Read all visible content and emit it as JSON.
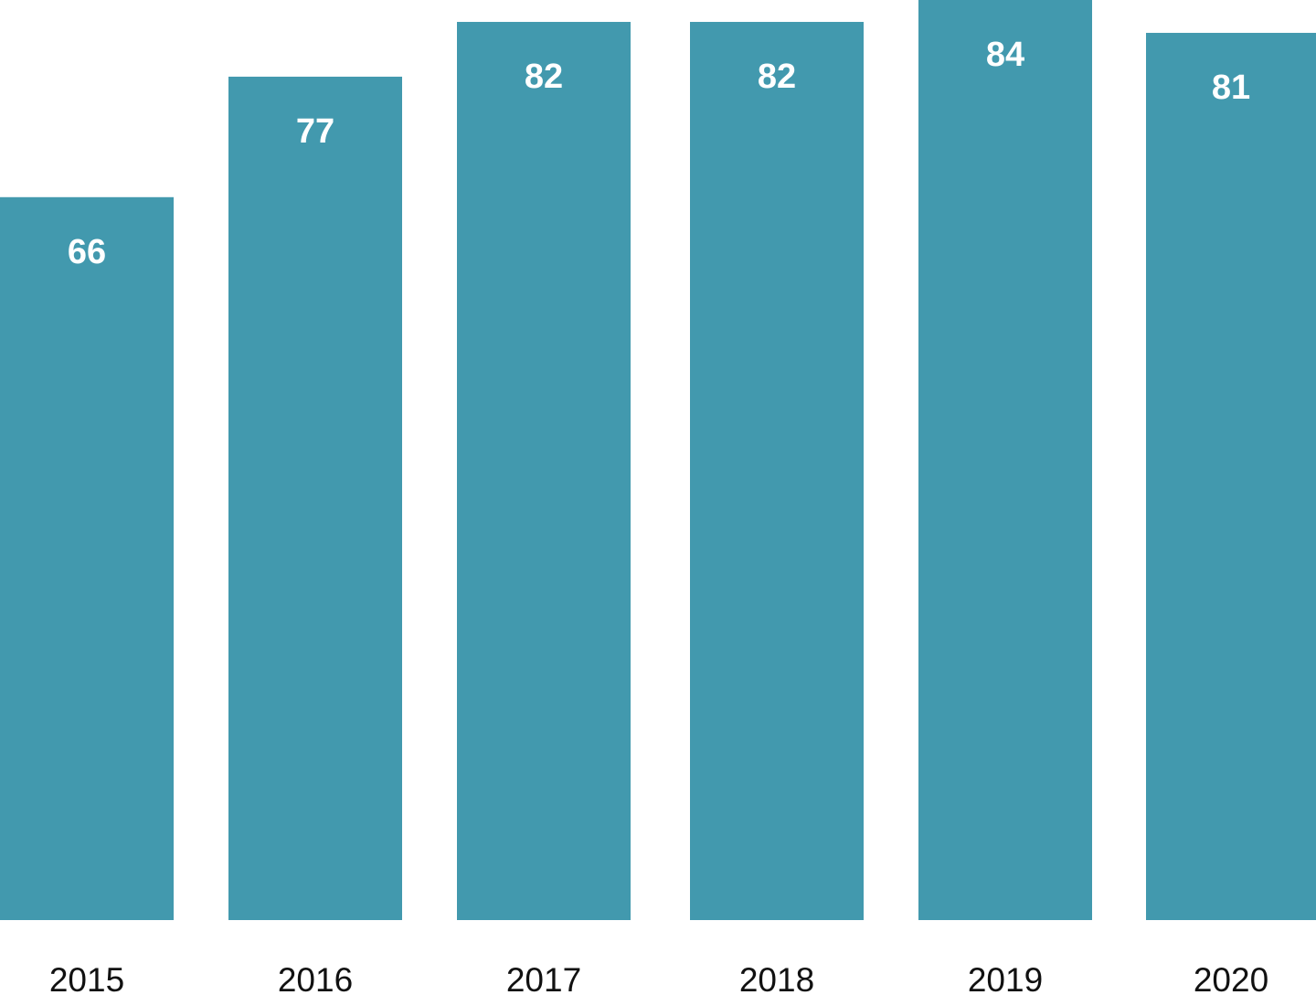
{
  "chart_data": {
    "type": "bar",
    "categories": [
      "2015",
      "2016",
      "2017",
      "2018",
      "2019",
      "2020"
    ],
    "values": [
      66,
      77,
      82,
      82,
      84,
      81
    ],
    "data_labels": [
      "66",
      "77",
      "82",
      "82",
      "84",
      "81"
    ],
    "title": "",
    "xlabel": "",
    "ylabel": "",
    "ylim": [
      0,
      84
    ],
    "grid": false,
    "legend": "none",
    "bar_color": "#4299AE"
  }
}
